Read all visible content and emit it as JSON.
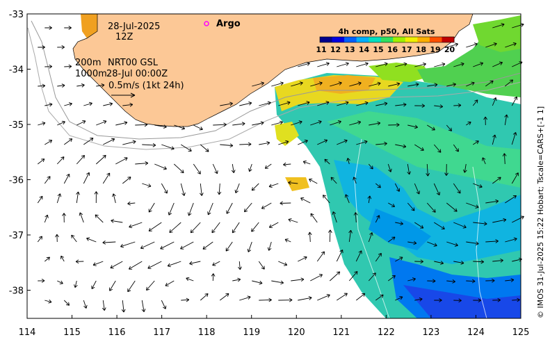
{
  "map": {
    "date": "28-Jul-2025",
    "time": "12Z",
    "legend_argo": "Argo",
    "line_200m": "200m",
    "line_1000m": "1000m",
    "product": "NRT00 GSL",
    "product_date": "28-Jul 00:00Z",
    "scale_label": "0.5m/s (1kt 24h)",
    "colorbar_title": "4h comp, p50, All Sats",
    "colorbar_ticks": [
      "11",
      "12",
      "13",
      "14",
      "15",
      "16",
      "17",
      "18",
      "19",
      "20"
    ],
    "colorbar_colors": [
      "#00008b",
      "#0000e0",
      "#0060ff",
      "#00b0ff",
      "#00e0c0",
      "#30e060",
      "#a0f000",
      "#f0f000",
      "#ffb000",
      "#ff5000",
      "#c00000"
    ],
    "credit": "© IMOS 31-Jul-2025 15:22 Hobart; Tscale=CARS+[-1 1]",
    "x_ticks": [
      "114",
      "115",
      "116",
      "117",
      "118",
      "119",
      "120",
      "121",
      "122",
      "123",
      "124",
      "125"
    ],
    "y_ticks": [
      "-33",
      "-34",
      "-35",
      "-36",
      "-37",
      "-38"
    ],
    "land_color": "#fcc896",
    "argo_color": "#ff00ff"
  }
}
